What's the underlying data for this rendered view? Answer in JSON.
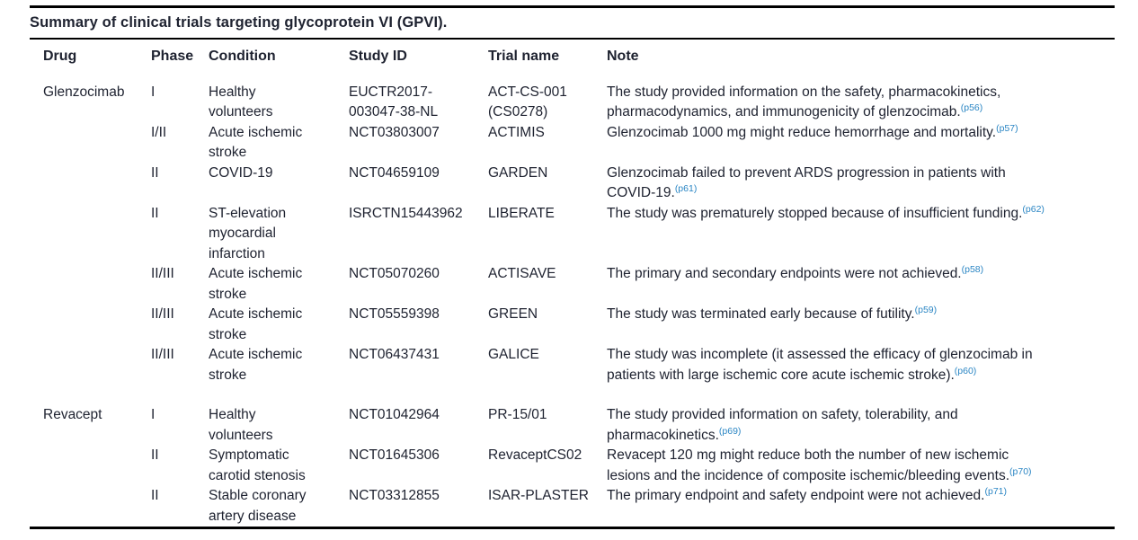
{
  "table": {
    "title": "Summary of clinical trials targeting glycoprotein VI (GPVI).",
    "columns": {
      "drug": "Drug",
      "phase": "Phase",
      "condition": "Condition",
      "study_id": "Study ID",
      "trial_name": "Trial name",
      "note": "Note"
    },
    "rows": [
      {
        "drug": "Glenzocimab",
        "phase": "I",
        "condition": "Healthy volunteers",
        "study_id": "EUCTR2017-003047-38-NL",
        "trial_name": "ACT-CS-001 (CS0278)",
        "note": "The study provided information on the safety, pharmacokinetics, pharmacodynamics, and immunogenicity of glenzocimab.",
        "ref": "(p56)"
      },
      {
        "drug": "",
        "phase": "I/II",
        "condition": "Acute ischemic stroke",
        "study_id": "NCT03803007",
        "trial_name": "ACTIMIS",
        "note": "Glenzocimab 1000 mg might reduce hemorrhage and mortality.",
        "ref": "(p57)"
      },
      {
        "drug": "",
        "phase": "II",
        "condition": "COVID-19",
        "study_id": "NCT04659109",
        "trial_name": "GARDEN",
        "note": "Glenzocimab failed to prevent ARDS progression in patients with COVID-19.",
        "ref": "(p61)"
      },
      {
        "drug": "",
        "phase": "II",
        "condition": "ST-elevation myocardial infarction",
        "study_id": "ISRCTN15443962",
        "trial_name": "LIBERATE",
        "note": "The study was prematurely stopped because of insufficient funding.",
        "ref": "(p62)"
      },
      {
        "drug": "",
        "phase": "II/III",
        "condition": "Acute ischemic stroke",
        "study_id": "NCT05070260",
        "trial_name": "ACTISAVE",
        "note": "The primary and secondary endpoints were not achieved.",
        "ref": "(p58)"
      },
      {
        "drug": "",
        "phase": "II/III",
        "condition": "Acute ischemic stroke",
        "study_id": "NCT05559398",
        "trial_name": "GREEN",
        "note": "The study was terminated early because of futility.",
        "ref": "(p59)"
      },
      {
        "drug": "",
        "phase": "II/III",
        "condition": "Acute ischemic stroke",
        "study_id": "NCT06437431",
        "trial_name": "GALICE",
        "note": "The study was incomplete (it assessed the efficacy of glenzocimab in patients with large ischemic core acute ischemic stroke).",
        "ref": "(p60)"
      },
      {
        "drug": "Revacept",
        "phase": "I",
        "condition": "Healthy volunteers",
        "study_id": "NCT01042964",
        "trial_name": "PR-15/01",
        "note": "The study provided information on safety, tolerability, and pharmacokinetics.",
        "ref": "(p69)"
      },
      {
        "drug": "",
        "phase": "II",
        "condition": "Symptomatic carotid stenosis",
        "study_id": "NCT01645306",
        "trial_name": "RevaceptCS02",
        "note": "Revacept 120 mg might reduce both the number of new ischemic lesions and the incidence of composite ischemic/bleeding events.",
        "ref": "(p70)"
      },
      {
        "drug": "",
        "phase": "II",
        "condition": "Stable coronary artery disease",
        "study_id": "NCT03312855",
        "trial_name": "ISAR-PLASTER",
        "note": "The primary endpoint and safety endpoint were not achieved.",
        "ref": "(p71)"
      }
    ]
  },
  "colors": {
    "citation_blue": "#2b86c4",
    "body_text": "#1e2230",
    "rule_black": "#000000"
  }
}
